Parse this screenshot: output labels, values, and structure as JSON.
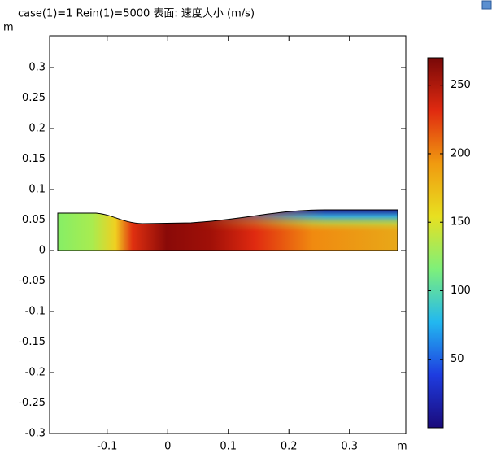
{
  "chart_data": {
    "type": "surface",
    "title": "case(1)=1 Rein(1)=5000  表面: 速度大小 (m/s)",
    "x_label": "m",
    "y_label": "m",
    "xlim": [
      -0.195,
      0.393
    ],
    "ylim": [
      -0.3,
      0.352
    ],
    "xticks": [
      -0.1,
      0,
      0.1,
      0.2,
      0.3
    ],
    "yticks": [
      -0.3,
      -0.25,
      -0.2,
      -0.15,
      -0.1,
      -0.05,
      0,
      0.05,
      0.1,
      0.15,
      0.2,
      0.25,
      0.3
    ],
    "colorbar": {
      "range": [
        0,
        270
      ],
      "ticks": [
        50,
        100,
        150,
        200,
        250
      ],
      "colormap": [
        "#1a0a7a",
        "#1e3ce0",
        "#22b8f0",
        "#7ef07a",
        "#e8e020",
        "#f09a10",
        "#e02a10",
        "#780808"
      ]
    }
  }
}
